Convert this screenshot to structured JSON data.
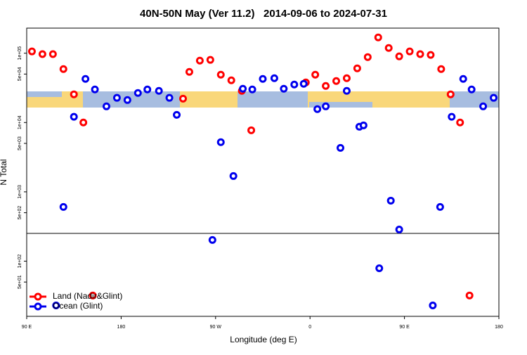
{
  "chart_data": {
    "type": "scatter",
    "title": "40N-50N May (Ver 11.2)   2014-09-06 to 2024-07-31",
    "x_label": "Longitude (deg E)",
    "y_label": "N Total",
    "log_y": true,
    "legend": "bottomleft",
    "xlim": [
      90,
      540
    ],
    "xticks": [
      {
        "value": 90,
        "label": "90 E"
      },
      180,
      {
        "value": 270,
        "label": "90 W"
      },
      {
        "value": 360,
        "label": "0"
      },
      {
        "value": 450,
        "label": "90 E"
      },
      {
        "value": 540,
        "label": "180"
      }
    ],
    "ylim": [
      16,
      230000
    ],
    "yticks": [
      {
        "value": 50,
        "label": "5e+01"
      },
      {
        "value": 100,
        "label": "1e+02"
      },
      {
        "value": 500,
        "label": "5e+02"
      },
      {
        "value": 1000,
        "label": "1e+03"
      },
      {
        "value": 5000,
        "label": "5e+03"
      },
      {
        "value": 10000,
        "label": "1e+04"
      },
      {
        "value": 50000,
        "label": "5e+04"
      },
      {
        "value": 100000,
        "label": "1e+05"
      }
    ],
    "series": [
      {
        "name": "Land (Nadir&Glint)",
        "color": "#ff0000",
        "x": [
          95,
          105,
          115,
          125,
          135,
          144,
          153,
          239,
          245,
          255,
          265,
          275,
          285,
          295,
          304,
          356,
          365,
          375,
          385,
          395,
          405,
          415,
          425,
          435,
          445,
          455,
          465,
          475,
          485,
          494,
          503,
          512
        ],
        "values": [
          106000,
          97000,
          97000,
          59000,
          25500,
          10000,
          32,
          22100,
          53800,
          78200,
          80100,
          49000,
          40600,
          28600,
          7730,
          37900,
          49000,
          33700,
          39700,
          43600,
          60500,
          87900,
          169000,
          119000,
          90000,
          106000,
          97000,
          94400,
          59000,
          25500,
          10000,
          32
        ]
      },
      {
        "name": "Ocean (Glint)",
        "color": "#0000ee",
        "x": [
          118,
          125,
          135,
          146,
          155,
          166,
          176,
          186,
          196,
          205,
          216,
          226,
          233,
          267,
          275,
          287,
          296,
          305,
          315,
          326,
          335,
          345,
          354,
          367,
          375,
          389,
          395,
          407,
          411,
          426,
          437,
          445,
          477,
          484,
          495,
          506,
          514,
          525,
          535
        ],
        "values": [
          23,
          605,
          12100,
          42600,
          30000,
          17100,
          22700,
          21100,
          26700,
          30000,
          28600,
          22700,
          12900,
          202,
          5200,
          1690,
          30700,
          30000,
          42600,
          43600,
          30700,
          35300,
          36200,
          15600,
          17100,
          4310,
          28600,
          8690,
          9100,
          79,
          746,
          286,
          23,
          605,
          12100,
          42600,
          30000,
          17100,
          22700
        ]
      }
    ]
  }
}
